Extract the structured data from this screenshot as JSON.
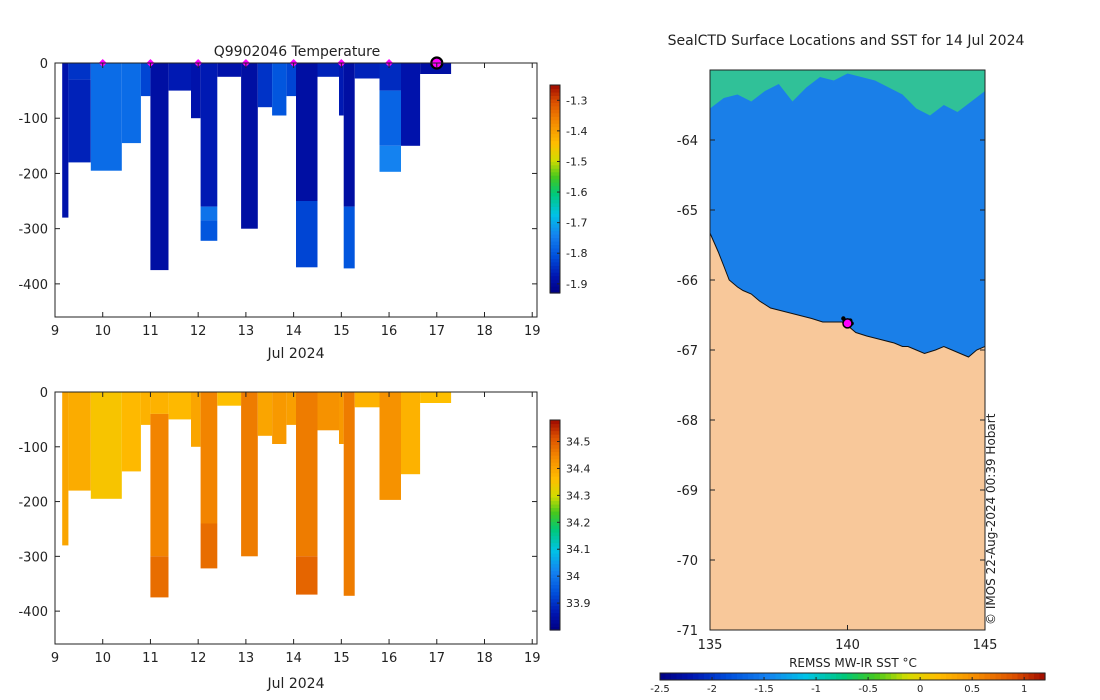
{
  "chart_data": [
    {
      "type": "heatmap",
      "id": "temperature",
      "title": "Q9902046  Temperature",
      "xlabel": "Jul 2024",
      "ylabel": "",
      "xlim": [
        9,
        19.1
      ],
      "ylim": [
        -460,
        0
      ],
      "xticks": [
        9,
        10,
        11,
        12,
        13,
        14,
        15,
        16,
        17,
        18,
        19
      ],
      "yticks": [
        0,
        -100,
        -200,
        -300,
        -400
      ],
      "colorbar": {
        "min": -1.93,
        "max": -1.25,
        "ticks": [
          "-1.3",
          "-1.4",
          "-1.5",
          "-1.6",
          "-1.7",
          "-1.8",
          "-1.9"
        ],
        "tick_values": [
          -1.3,
          -1.4,
          -1.5,
          -1.6,
          -1.7,
          -1.8,
          -1.9
        ]
      },
      "profile_markers_x": [
        10,
        11,
        12,
        13,
        14,
        15,
        16
      ],
      "last_position_x": 17,
      "profiles": [
        {
          "x0": 9.15,
          "x1": 9.28,
          "segments": [
            {
              "d0": 0,
              "d1": 280,
              "v": -1.88
            }
          ]
        },
        {
          "x0": 9.28,
          "x1": 9.75,
          "segments": [
            {
              "d0": 0,
              "d1": 30,
              "v": -1.84
            },
            {
              "d0": 30,
              "d1": 180,
              "v": -1.86
            }
          ]
        },
        {
          "x0": 9.75,
          "x1": 10.4,
          "segments": [
            {
              "d0": 0,
              "d1": 195,
              "v": -1.77
            }
          ]
        },
        {
          "x0": 10.4,
          "x1": 10.8,
          "segments": [
            {
              "d0": 0,
              "d1": 145,
              "v": -1.77
            }
          ]
        },
        {
          "x0": 10.8,
          "x1": 11.0,
          "segments": [
            {
              "d0": 0,
              "d1": 60,
              "v": -1.82
            }
          ]
        },
        {
          "x0": 11.0,
          "x1": 11.38,
          "segments": [
            {
              "d0": 0,
              "d1": 375,
              "v": -1.89
            }
          ]
        },
        {
          "x0": 11.38,
          "x1": 11.85,
          "segments": [
            {
              "d0": 0,
              "d1": 50,
              "v": -1.87
            }
          ]
        },
        {
          "x0": 11.85,
          "x1": 12.05,
          "segments": [
            {
              "d0": 0,
              "d1": 100,
              "v": -1.88
            }
          ]
        },
        {
          "x0": 12.05,
          "x1": 12.4,
          "segments": [
            {
              "d0": 0,
              "d1": 260,
              "v": -1.87
            },
            {
              "d0": 260,
              "d1": 285,
              "v": -1.76
            },
            {
              "d0": 285,
              "d1": 322,
              "v": -1.8
            }
          ]
        },
        {
          "x0": 12.4,
          "x1": 12.9,
          "segments": [
            {
              "d0": 0,
              "d1": 25,
              "v": -1.88
            }
          ]
        },
        {
          "x0": 12.9,
          "x1": 13.25,
          "segments": [
            {
              "d0": 0,
              "d1": 300,
              "v": -1.89
            }
          ]
        },
        {
          "x0": 13.25,
          "x1": 13.55,
          "segments": [
            {
              "d0": 0,
              "d1": 80,
              "v": -1.84
            }
          ]
        },
        {
          "x0": 13.55,
          "x1": 13.85,
          "segments": [
            {
              "d0": 0,
              "d1": 95,
              "v": -1.8
            }
          ]
        },
        {
          "x0": 13.85,
          "x1": 14.05,
          "segments": [
            {
              "d0": 0,
              "d1": 60,
              "v": -1.82
            }
          ]
        },
        {
          "x0": 14.05,
          "x1": 14.5,
          "segments": [
            {
              "d0": 0,
              "d1": 250,
              "v": -1.89
            },
            {
              "d0": 250,
              "d1": 370,
              "v": -1.82
            }
          ]
        },
        {
          "x0": 14.5,
          "x1": 14.95,
          "segments": [
            {
              "d0": 0,
              "d1": 25,
              "v": -1.86
            }
          ]
        },
        {
          "x0": 14.95,
          "x1": 15.05,
          "segments": [
            {
              "d0": 0,
              "d1": 95,
              "v": -1.87
            }
          ]
        },
        {
          "x0": 15.05,
          "x1": 15.28,
          "segments": [
            {
              "d0": 0,
              "d1": 260,
              "v": -1.89
            },
            {
              "d0": 260,
              "d1": 372,
              "v": -1.8
            }
          ]
        },
        {
          "x0": 15.28,
          "x1": 15.8,
          "segments": [
            {
              "d0": 0,
              "d1": 28,
              "v": -1.86
            }
          ]
        },
        {
          "x0": 15.8,
          "x1": 16.25,
          "segments": [
            {
              "d0": 0,
              "d1": 50,
              "v": -1.85
            },
            {
              "d0": 50,
              "d1": 150,
              "v": -1.78
            },
            {
              "d0": 150,
              "d1": 197,
              "v": -1.74
            }
          ]
        },
        {
          "x0": 16.25,
          "x1": 16.65,
          "segments": [
            {
              "d0": 0,
              "d1": 150,
              "v": -1.88
            }
          ]
        },
        {
          "x0": 16.65,
          "x1": 17.3,
          "segments": [
            {
              "d0": 0,
              "d1": 20,
              "v": -1.89
            }
          ]
        }
      ]
    },
    {
      "type": "heatmap",
      "id": "salinity",
      "title": "",
      "xlabel": "Jul 2024",
      "ylabel": "",
      "xlim": [
        9,
        19.1
      ],
      "ylim": [
        -460,
        0
      ],
      "xticks": [
        9,
        10,
        11,
        12,
        13,
        14,
        15,
        16,
        17,
        18,
        19
      ],
      "yticks": [
        0,
        -100,
        -200,
        -300,
        -400
      ],
      "colorbar": {
        "min": 33.8,
        "max": 34.58,
        "ticks": [
          "34.5",
          "34.4",
          "34.3",
          "34.2",
          "34.1",
          "34",
          "33.9"
        ],
        "tick_values": [
          34.5,
          34.4,
          34.3,
          34.2,
          34.1,
          34.0,
          33.9
        ]
      },
      "profiles": [
        {
          "x0": 9.15,
          "x1": 9.28,
          "segments": [
            {
              "d0": 0,
              "d1": 280,
              "v": 34.4
            }
          ]
        },
        {
          "x0": 9.28,
          "x1": 9.75,
          "segments": [
            {
              "d0": 0,
              "d1": 180,
              "v": 34.39
            }
          ]
        },
        {
          "x0": 9.75,
          "x1": 10.4,
          "segments": [
            {
              "d0": 0,
              "d1": 195,
              "v": 34.35
            }
          ]
        },
        {
          "x0": 10.4,
          "x1": 10.8,
          "segments": [
            {
              "d0": 0,
              "d1": 145,
              "v": 34.37
            }
          ]
        },
        {
          "x0": 10.8,
          "x1": 11.0,
          "segments": [
            {
              "d0": 0,
              "d1": 60,
              "v": 34.38
            }
          ]
        },
        {
          "x0": 11.0,
          "x1": 11.38,
          "segments": [
            {
              "d0": 0,
              "d1": 40,
              "v": 34.38
            },
            {
              "d0": 40,
              "d1": 300,
              "v": 34.45
            },
            {
              "d0": 300,
              "d1": 375,
              "v": 34.48
            }
          ]
        },
        {
          "x0": 11.38,
          "x1": 11.85,
          "segments": [
            {
              "d0": 0,
              "d1": 50,
              "v": 34.37
            }
          ]
        },
        {
          "x0": 11.85,
          "x1": 12.05,
          "segments": [
            {
              "d0": 0,
              "d1": 100,
              "v": 34.4
            }
          ]
        },
        {
          "x0": 12.05,
          "x1": 12.4,
          "segments": [
            {
              "d0": 0,
              "d1": 240,
              "v": 34.45
            },
            {
              "d0": 240,
              "d1": 322,
              "v": 34.48
            }
          ]
        },
        {
          "x0": 12.4,
          "x1": 12.9,
          "segments": [
            {
              "d0": 0,
              "d1": 25,
              "v": 34.36
            }
          ]
        },
        {
          "x0": 12.9,
          "x1": 13.25,
          "segments": [
            {
              "d0": 0,
              "d1": 300,
              "v": 34.46
            }
          ]
        },
        {
          "x0": 13.25,
          "x1": 13.55,
          "segments": [
            {
              "d0": 0,
              "d1": 80,
              "v": 34.4
            }
          ]
        },
        {
          "x0": 13.55,
          "x1": 13.85,
          "segments": [
            {
              "d0": 0,
              "d1": 95,
              "v": 34.42
            }
          ]
        },
        {
          "x0": 13.85,
          "x1": 14.05,
          "segments": [
            {
              "d0": 0,
              "d1": 60,
              "v": 34.41
            }
          ]
        },
        {
          "x0": 14.05,
          "x1": 14.5,
          "segments": [
            {
              "d0": 0,
              "d1": 300,
              "v": 34.46
            },
            {
              "d0": 300,
              "d1": 370,
              "v": 34.49
            }
          ]
        },
        {
          "x0": 14.5,
          "x1": 14.95,
          "segments": [
            {
              "d0": 0,
              "d1": 70,
              "v": 34.43
            }
          ]
        },
        {
          "x0": 14.95,
          "x1": 15.05,
          "segments": [
            {
              "d0": 0,
              "d1": 95,
              "v": 34.42
            }
          ]
        },
        {
          "x0": 15.05,
          "x1": 15.28,
          "segments": [
            {
              "d0": 0,
              "d1": 372,
              "v": 34.46
            }
          ]
        },
        {
          "x0": 15.28,
          "x1": 15.8,
          "segments": [
            {
              "d0": 0,
              "d1": 28,
              "v": 34.38
            }
          ]
        },
        {
          "x0": 15.8,
          "x1": 16.25,
          "segments": [
            {
              "d0": 0,
              "d1": 197,
              "v": 34.43
            }
          ]
        },
        {
          "x0": 16.25,
          "x1": 16.65,
          "segments": [
            {
              "d0": 0,
              "d1": 150,
              "v": 34.38
            }
          ]
        },
        {
          "x0": 16.65,
          "x1": 17.3,
          "segments": [
            {
              "d0": 0,
              "d1": 20,
              "v": 34.36
            }
          ]
        }
      ]
    },
    {
      "type": "heatmap",
      "id": "sst_map",
      "title": "SealCTD Surface Locations and SST for 14 Jul 2024",
      "xlim": [
        135,
        145
      ],
      "ylim": [
        -71,
        -63
      ],
      "xticks": [
        135,
        140,
        145
      ],
      "yticks": [
        -64,
        -65,
        -66,
        -67,
        -68,
        -69,
        -70,
        -71
      ],
      "colorbar": {
        "label": "REMSS MW-IR SST °C",
        "min": -2.5,
        "max": 1.2,
        "ticks": [
          "-2.5",
          "-2",
          "-1.5",
          "-1",
          "-0.5",
          "0",
          "0.5",
          "1"
        ],
        "tick_values": [
          -2.5,
          -2,
          -1.5,
          -1,
          -0.5,
          0,
          0.5,
          1
        ]
      },
      "credit": "© IMOS 22-Aug-2024 00:39 Hobart",
      "land_color": "#f8c89a",
      "ocean_color": "#1a7fe8",
      "warm_band_color": "#33c98f",
      "coastline_lon": [
        135.0,
        135.3,
        135.5,
        135.7,
        136.0,
        136.2,
        136.5,
        136.8,
        137.2,
        137.7,
        138.2,
        138.7,
        139.1,
        139.5,
        139.8,
        140.0,
        140.3,
        140.7,
        141.2,
        141.7,
        142.0,
        142.2,
        142.5,
        142.8,
        143.2,
        143.5,
        143.8,
        144.1,
        144.4,
        144.7,
        145.0
      ],
      "coastline_lat": [
        -65.33,
        -65.6,
        -65.8,
        -66.0,
        -66.1,
        -66.15,
        -66.2,
        -66.3,
        -66.4,
        -66.45,
        -66.5,
        -66.55,
        -66.6,
        -66.6,
        -66.6,
        -66.65,
        -66.75,
        -66.8,
        -66.85,
        -66.9,
        -66.95,
        -66.95,
        -67.0,
        -67.05,
        -67.0,
        -66.95,
        -67.0,
        -67.05,
        -67.1,
        -67.0,
        -66.95
      ],
      "seal_positions_lon": [
        139.85,
        139.9,
        139.95,
        140.0,
        140.05,
        140.1,
        140.15
      ],
      "seal_positions_lat": [
        -66.55,
        -66.58,
        -66.6,
        -66.62,
        -66.6,
        -66.58,
        -66.62
      ],
      "current_position": [
        140.0,
        -66.62
      ]
    }
  ]
}
